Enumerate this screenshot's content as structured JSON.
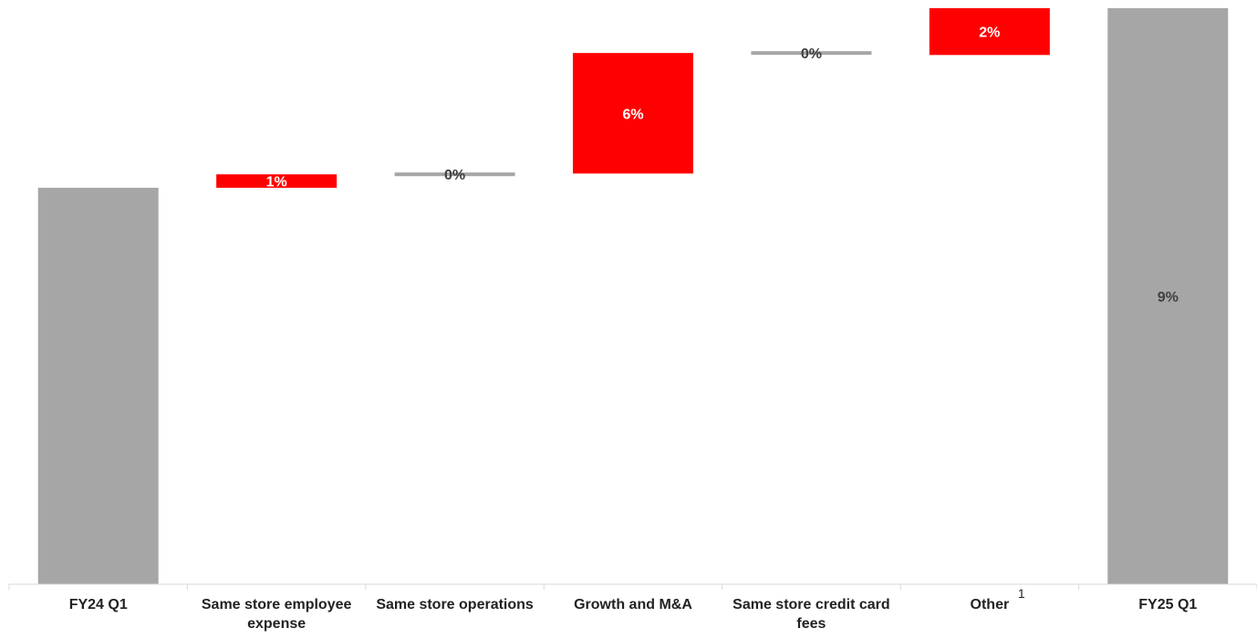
{
  "chart_data": {
    "type": "waterfall",
    "categories": [
      "FY24 Q1",
      "Same store employee expense",
      "Same store operations",
      "Growth and M&A",
      "Same store credit card fees",
      "Other",
      "FY25 Q1"
    ],
    "category_lines": [
      [
        "FY24 Q1"
      ],
      [
        "Same store employee",
        "expense"
      ],
      [
        "Same store operations"
      ],
      [
        "Growth and M&A"
      ],
      [
        "Same store credit card",
        "fees"
      ],
      [
        "Other"
      ],
      [
        "FY25 Q1"
      ]
    ],
    "steps": [
      {
        "kind": "total",
        "start": 0,
        "end": 100.0,
        "label": ""
      },
      {
        "kind": "delta",
        "start": 100.0,
        "end": 103.4,
        "label": "1%"
      },
      {
        "kind": "delta",
        "start": 103.4,
        "end": 103.4,
        "label": "0%"
      },
      {
        "kind": "delta",
        "start": 103.6,
        "end": 134.0,
        "label": "6%"
      },
      {
        "kind": "delta",
        "start": 134.0,
        "end": 134.0,
        "label": "0%"
      },
      {
        "kind": "delta",
        "start": 133.5,
        "end": 145.3,
        "label": "2%"
      },
      {
        "kind": "total",
        "start": 0,
        "end": 145.3,
        "label": "9%"
      }
    ],
    "footnote_marks": [
      {
        "category_index": 5,
        "text": "1"
      }
    ],
    "ylim": [
      0,
      145.3
    ],
    "colors": {
      "total": "#a6a6a6",
      "increase": "#ff0000",
      "flat": "#a6a6a6",
      "axis": "#d9d9d9",
      "label_dark": "#404040",
      "label_light": "#ffffff"
    }
  }
}
